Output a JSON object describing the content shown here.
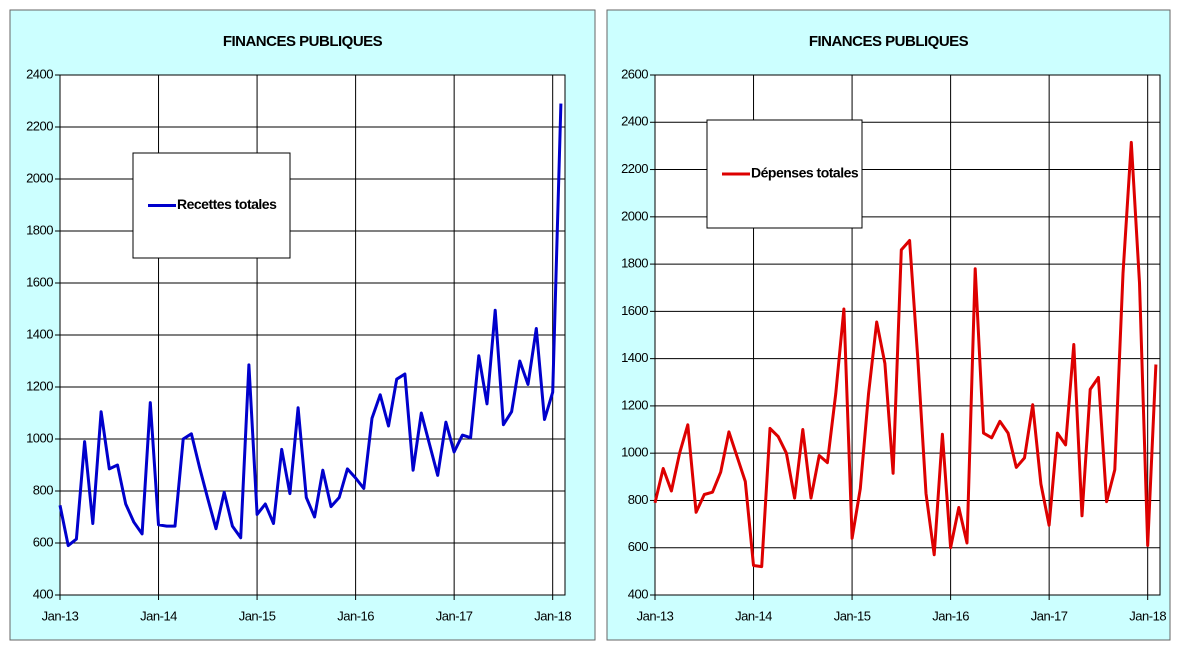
{
  "chart_data": [
    {
      "type": "line",
      "title": "FINANCES PUBLIQUES",
      "categories": [
        "Jan-13",
        null,
        null,
        null,
        null,
        null,
        null,
        null,
        null,
        null,
        null,
        null,
        "Jan-14",
        null,
        null,
        null,
        null,
        null,
        null,
        null,
        null,
        null,
        null,
        null,
        "Jan-15",
        null,
        null,
        null,
        null,
        null,
        null,
        null,
        null,
        null,
        null,
        null,
        "Jan-16",
        null,
        null,
        null,
        null,
        null,
        null,
        null,
        null,
        null,
        null,
        null,
        "Jan-17",
        null,
        null,
        null,
        null,
        null,
        null,
        null,
        null,
        null,
        null,
        null,
        "Jan-18",
        null
      ],
      "series": [
        {
          "name": "Recettes totales",
          "color": "#0000cc",
          "values": [
            745,
            590,
            615,
            990,
            675,
            1105,
            885,
            900,
            750,
            680,
            635,
            1140,
            670,
            665,
            665,
            1000,
            1020,
            890,
            770,
            655,
            795,
            665,
            620,
            1285,
            710,
            750,
            675,
            960,
            790,
            1120,
            775,
            700,
            880,
            740,
            775,
            885,
            850,
            810,
            1080,
            1170,
            1050,
            1230,
            1250,
            880,
            1100,
            980,
            860,
            1065,
            950,
            1015,
            1005,
            1320,
            1135,
            1495,
            1055,
            1105,
            1300,
            1210,
            1425,
            1075,
            1180,
            2290
          ]
        }
      ],
      "ylim": [
        400,
        2400
      ],
      "yticks": [
        400,
        600,
        800,
        1000,
        1200,
        1400,
        1600,
        1800,
        2000,
        2200,
        2400
      ],
      "grid": true
    },
    {
      "type": "line",
      "title": "FINANCES PUBLIQUES",
      "categories": [
        "Jan-13",
        null,
        null,
        null,
        null,
        null,
        null,
        null,
        null,
        null,
        null,
        null,
        "Jan-14",
        null,
        null,
        null,
        null,
        null,
        null,
        null,
        null,
        null,
        null,
        null,
        "Jan-15",
        null,
        null,
        null,
        null,
        null,
        null,
        null,
        null,
        null,
        null,
        null,
        "Jan-16",
        null,
        null,
        null,
        null,
        null,
        null,
        null,
        null,
        null,
        null,
        null,
        "Jan-17",
        null,
        null,
        null,
        null,
        null,
        null,
        null,
        null,
        null,
        null,
        null,
        "Jan-18",
        null
      ],
      "series": [
        {
          "name": "Dépenses totales",
          "color": "#dd0000",
          "values": [
            790,
            935,
            840,
            1000,
            1120,
            750,
            825,
            835,
            920,
            1090,
            985,
            880,
            525,
            520,
            1105,
            1070,
            1000,
            810,
            1100,
            810,
            990,
            960,
            1250,
            1610,
            640,
            850,
            1250,
            1555,
            1380,
            915,
            1860,
            1900,
            1400,
            830,
            570,
            1080,
            600,
            770,
            620,
            1780,
            1085,
            1065,
            1135,
            1085,
            940,
            980,
            1205,
            870,
            695,
            1085,
            1035,
            1460,
            735,
            1270,
            1320,
            795,
            930,
            1760,
            2315,
            1720,
            610,
            1375
          ]
        }
      ],
      "ylim": [
        400,
        2600
      ],
      "yticks": [
        400,
        600,
        800,
        1000,
        1200,
        1400,
        1600,
        1800,
        2000,
        2200,
        2400,
        2600
      ],
      "grid": true
    }
  ]
}
